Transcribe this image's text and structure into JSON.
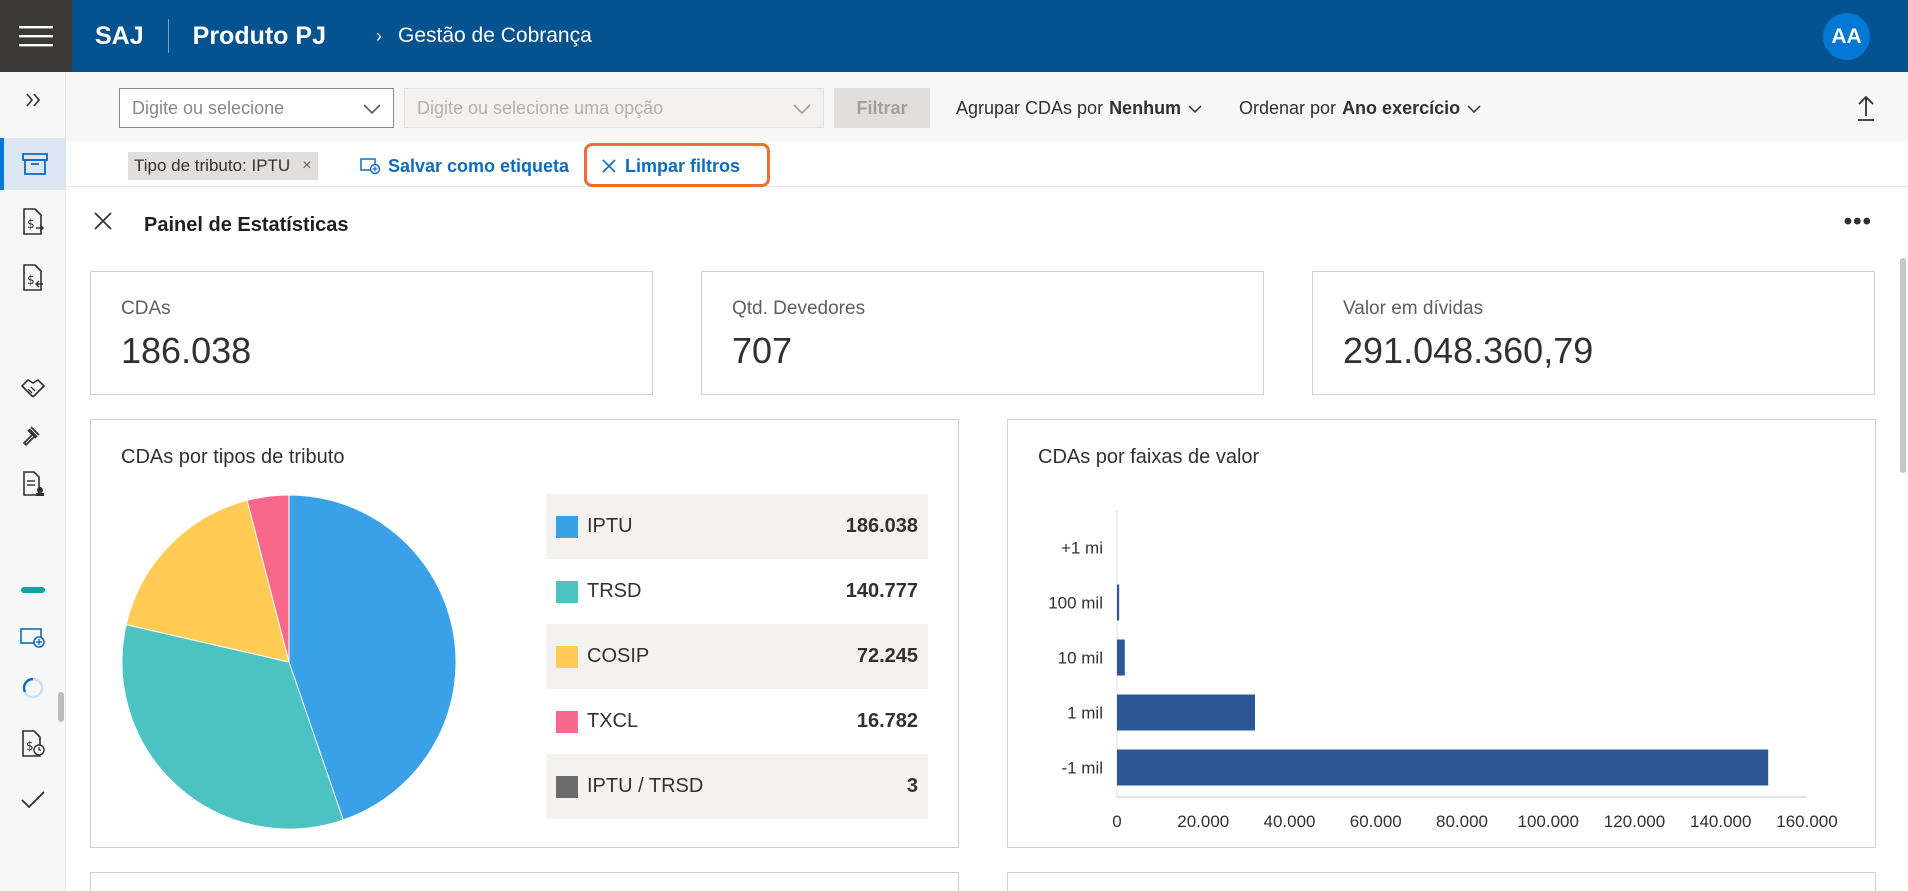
{
  "header": {
    "brand": "SAJ",
    "product": "Produto PJ",
    "breadcrumb": "Gestão de Cobrança",
    "avatar_initials": "AA",
    "accent_color": "#04528f"
  },
  "rail": {
    "icons": [
      "expand-icon",
      "archive-icon",
      "money-doc-out-icon",
      "money-doc-in-icon",
      "handshake-icon",
      "gavel-icon",
      "doc-person-icon",
      "green-bar-icon",
      "screen-add-icon",
      "loading-icon",
      "money-doc-clock-icon",
      "check-icon"
    ]
  },
  "toolbar": {
    "combo1_placeholder": "Digite ou selecione",
    "combo2_placeholder": "Digite ou selecione uma opção",
    "filter_label": "Filtrar",
    "group_label": "Agrupar CDAs por",
    "group_value": "Nenhum",
    "order_label": "Ordenar por",
    "order_value": "Ano exercício"
  },
  "filters": {
    "chip": "Tipo de tributo: IPTU",
    "chip_close": "×",
    "save_label": "Salvar como etiqueta",
    "clear_label": "Limpar filtros"
  },
  "panel": {
    "title": "Painel de Estatísticas",
    "more": "•••"
  },
  "stats": [
    {
      "label": "CDAs",
      "value": "186.038"
    },
    {
      "label": "Qtd. Devedores",
      "value": "707"
    },
    {
      "label": "Valor em dívidas",
      "value": "291.048.360,79"
    }
  ],
  "chart_data": [
    {
      "type": "pie",
      "title": "CDAs por tipos de tributo",
      "slices": [
        {
          "name": "IPTU",
          "value": 186038,
          "display": "186.038",
          "color": "#3aa1e8"
        },
        {
          "name": "TRSD",
          "value": 140777,
          "display": "140.777",
          "color": "#4cc2c2"
        },
        {
          "name": "COSIP",
          "value": 72245,
          "display": "72.245",
          "color": "#ffcb55"
        },
        {
          "name": "TXCL",
          "value": 16782,
          "display": "16.782",
          "color": "#f7688a"
        },
        {
          "name": "IPTU / TRSD",
          "value": 3,
          "display": "3",
          "color": "#6b6b6b"
        }
      ],
      "legend_position": "right"
    },
    {
      "type": "bar",
      "orientation": "horizontal",
      "title": "CDAs por faixas de valor",
      "categories": [
        "+1 mi",
        "100 mil",
        "10 mil",
        "1 mil",
        "-1 mil"
      ],
      "values": [
        0,
        500,
        1800,
        32000,
        151000
      ],
      "xlim": [
        0,
        160000
      ],
      "xticks": [
        0,
        20000,
        40000,
        60000,
        80000,
        100000,
        120000,
        140000,
        160000
      ],
      "xtick_labels": [
        "0",
        "20.000",
        "40.000",
        "60.000",
        "80.000",
        "100.000",
        "120.000",
        "140.000",
        "160.000"
      ],
      "bar_color": "#2b5797",
      "grid": false
    }
  ]
}
